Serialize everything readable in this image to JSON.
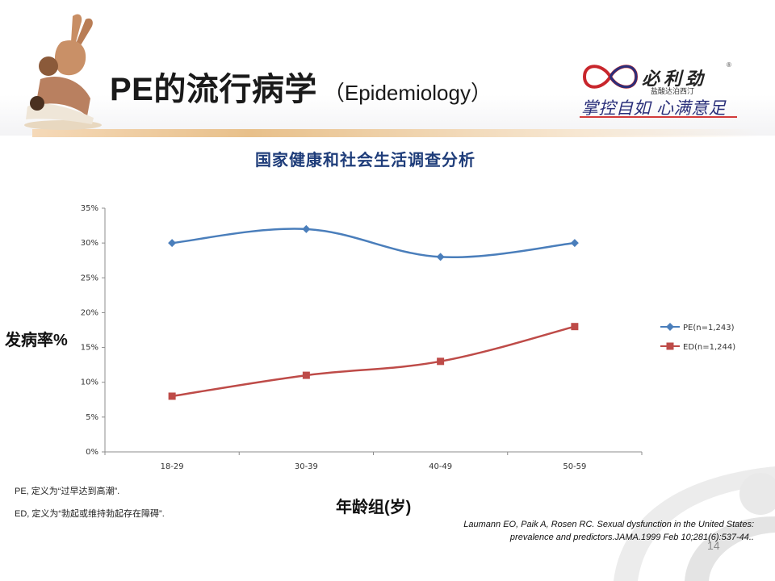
{
  "slide": {
    "title_main": "PE的流行病学",
    "title_sub": "（Epidemiology）",
    "page_number": "14"
  },
  "logo": {
    "brand": "必利劲",
    "registered_mark": "®",
    "sub": "盐酸达泊西汀",
    "slogan": "掌控自如 心满意足"
  },
  "notes": [
    "PE, 定义为“过早达到高潮”.",
    "ED, 定义为“勃起或维持勃起存在障碍”."
  ],
  "reference": {
    "line1": "Laumann EO, Paik A, Rosen RC. Sexual dysfunction in the United States:",
    "line2": "prevalence and predictors.JAMA.1999 Feb 10;281(6):537-44.."
  },
  "chart_data": {
    "type": "line",
    "title": "国家健康和社会生活调查分析",
    "xlabel": "年龄组(岁)",
    "ylabel": "发病率%",
    "categories": [
      "18-29",
      "30-39",
      "40-49",
      "50-59"
    ],
    "y_ticks": [
      "0%",
      "5%",
      "10%",
      "15%",
      "20%",
      "25%",
      "30%",
      "35%"
    ],
    "ylim": [
      0,
      35
    ],
    "grid": false,
    "legend_position": "right",
    "series": [
      {
        "name": "PE(n=1,243)",
        "values": [
          30,
          32,
          28,
          30
        ],
        "color": "#4a7ebb",
        "marker": "diamond"
      },
      {
        "name": "ED(n=1,244)",
        "values": [
          8,
          11,
          13,
          18
        ],
        "color": "#be4b48",
        "marker": "square"
      }
    ]
  }
}
